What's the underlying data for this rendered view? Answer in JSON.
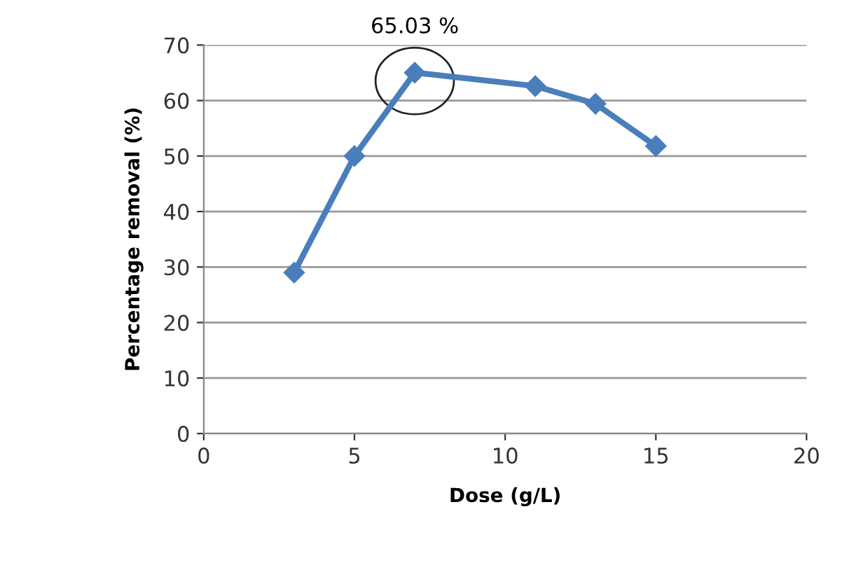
{
  "chart_data": {
    "type": "line",
    "xlabel": "Dose (g/L)",
    "ylabel": "Percentage removal (%)",
    "x": [
      3,
      5,
      7,
      11,
      13,
      15
    ],
    "series": [
      {
        "color": "#4a7ebb",
        "values": [
          29.0,
          50.0,
          65.03,
          62.6,
          59.4,
          51.8
        ]
      }
    ],
    "xlim": [
      0,
      20
    ],
    "xticks": [
      0,
      5,
      10,
      15,
      20
    ],
    "ylim": [
      0,
      70
    ],
    "yticks": [
      0,
      10,
      20,
      30,
      40,
      50,
      60,
      70
    ],
    "grid": "y",
    "marker": "diamond",
    "line_style": "solid",
    "legend": false,
    "annotations": [
      {
        "text": "65.03 %",
        "x": 7,
        "y": 65.03
      }
    ]
  }
}
